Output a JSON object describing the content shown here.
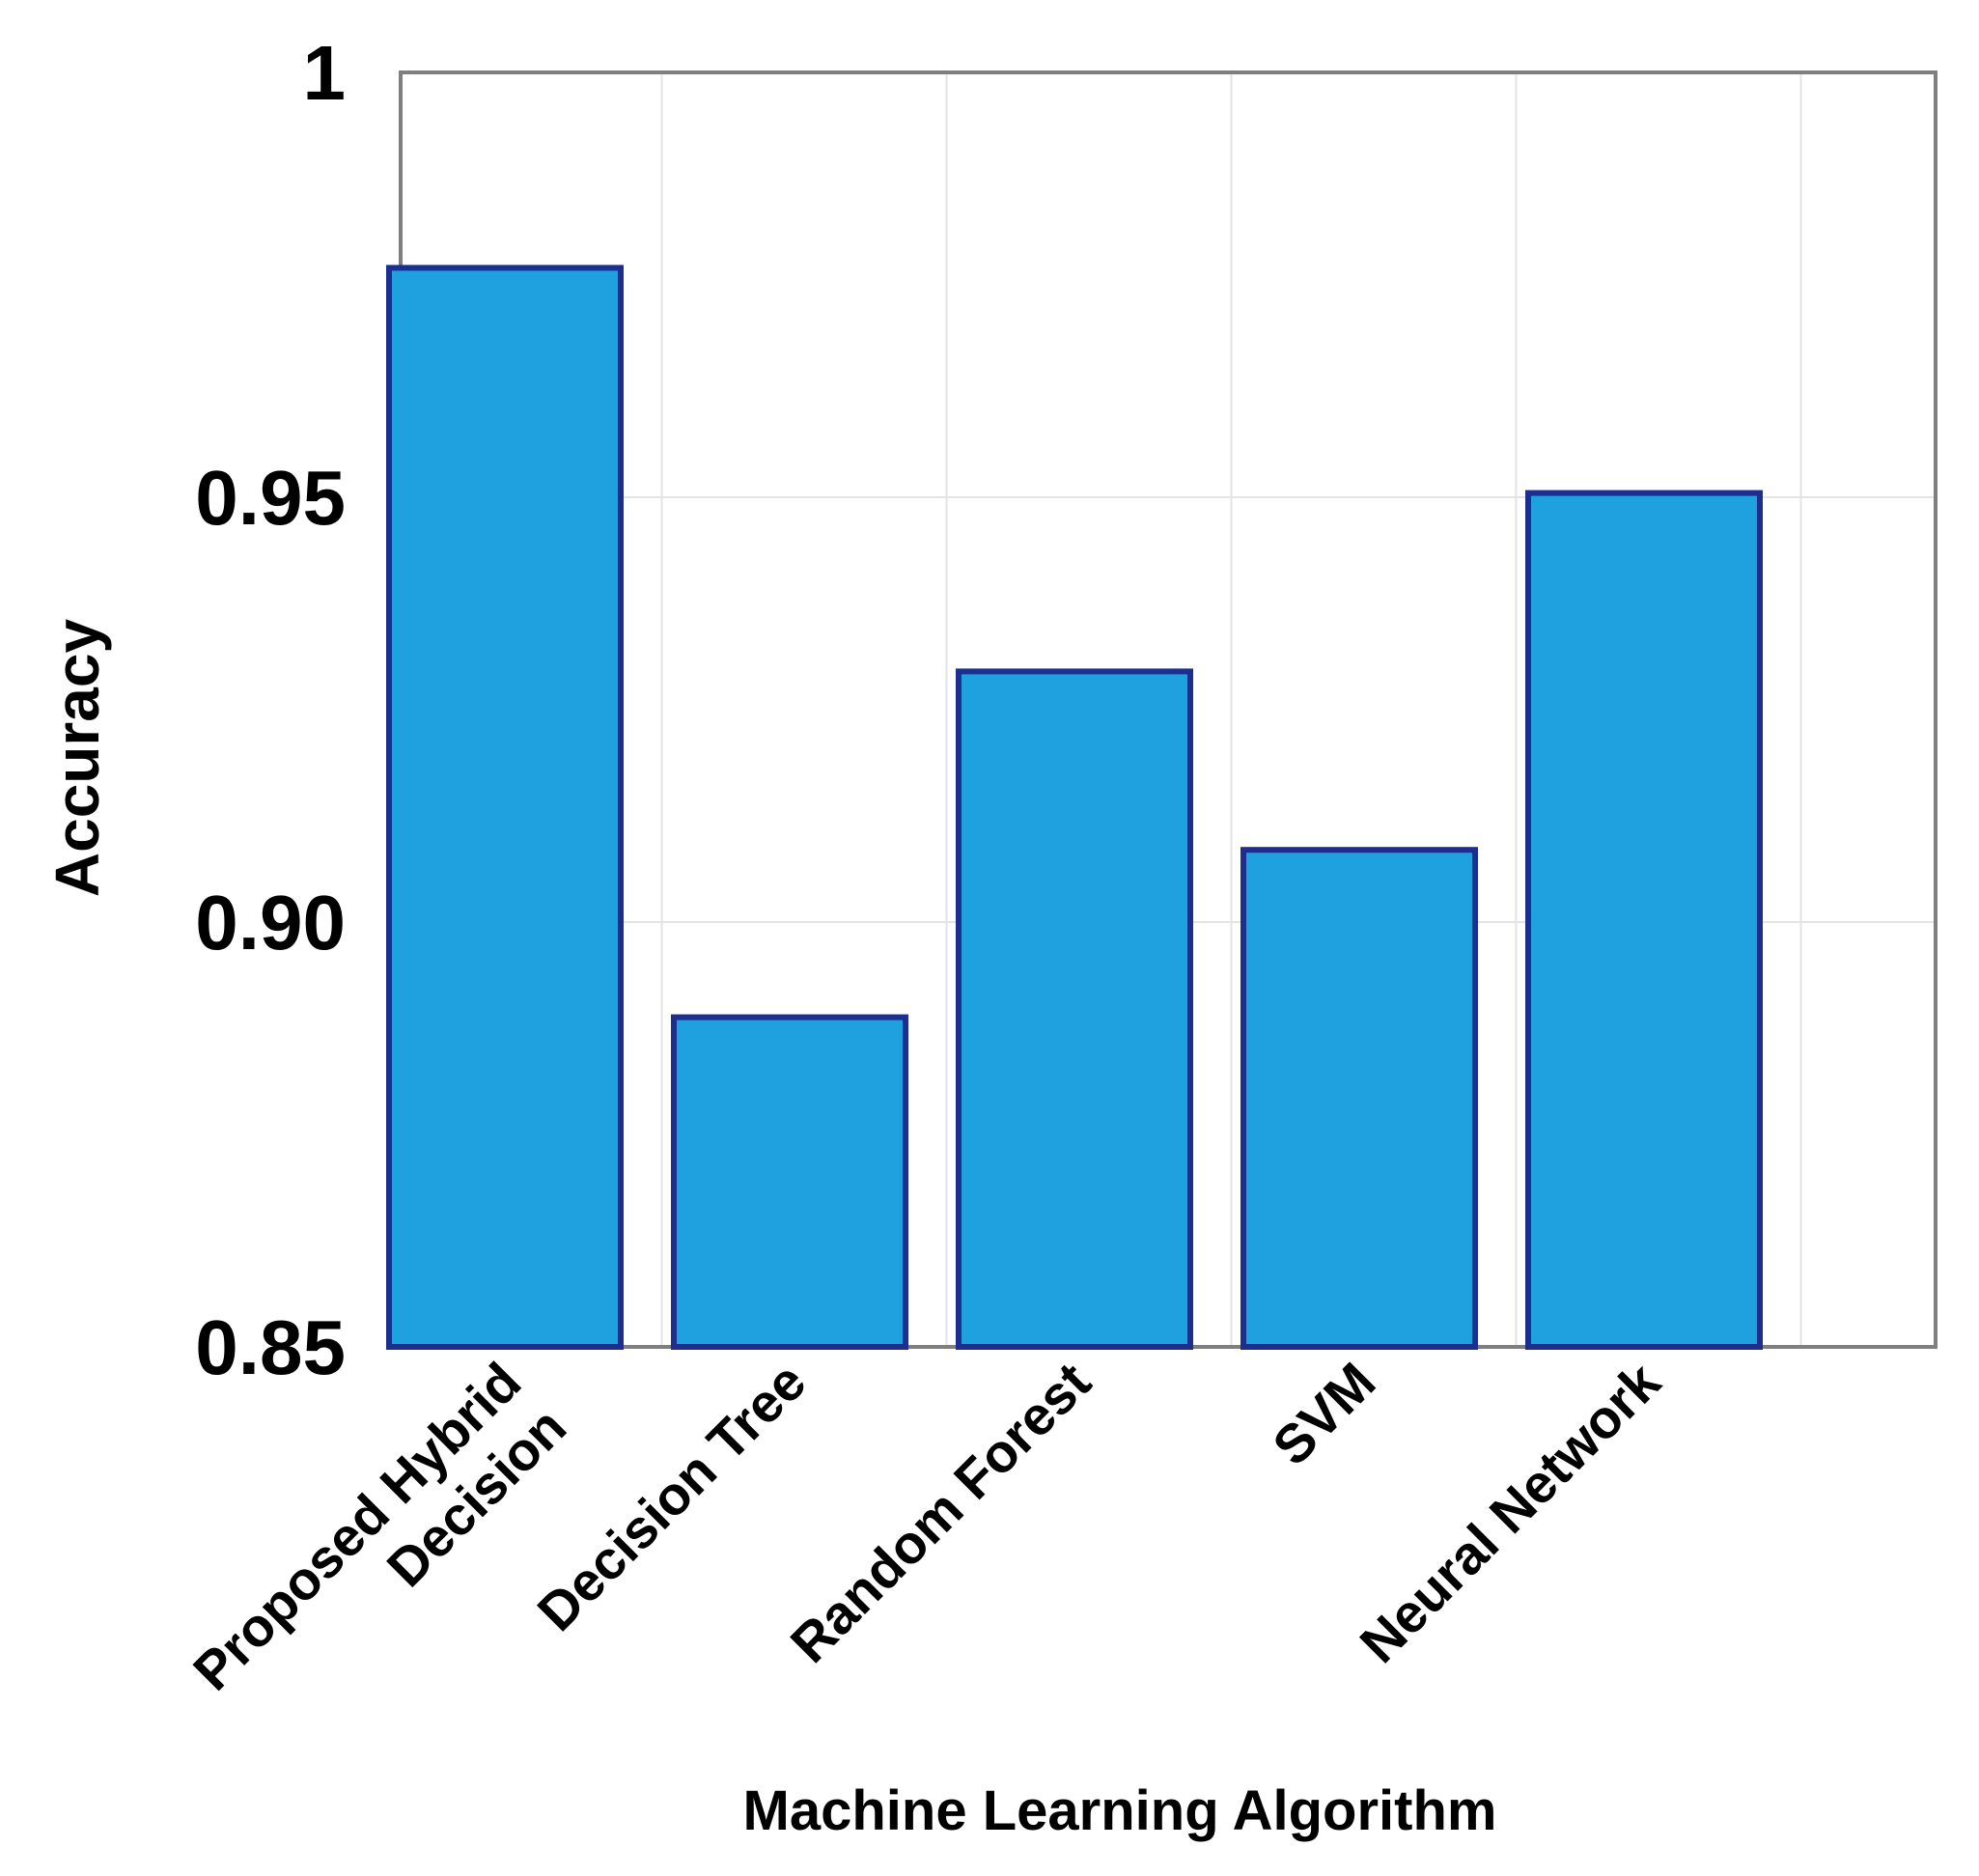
{
  "chart_data": {
    "type": "bar",
    "categories": [
      "Proposed Hybrid\nDecision",
      "Decision Tree",
      "Random Forest",
      "SVM",
      "Neural Network"
    ],
    "values": [
      0.977,
      0.8888,
      0.9295,
      0.9085,
      0.9505
    ],
    "title": "",
    "xlabel": "Machine Learning Algorithm",
    "ylabel": "Accuracy",
    "ylim": [
      0.85,
      1.0
    ],
    "yticks": [
      0.85,
      0.9,
      0.95,
      1.0
    ],
    "ytick_labels": [
      "0.85",
      "0.90",
      "0.95",
      "1"
    ],
    "grid": true,
    "bar_color": "#1fa1e0",
    "bar_edge_color": "#1c2f8f"
  }
}
